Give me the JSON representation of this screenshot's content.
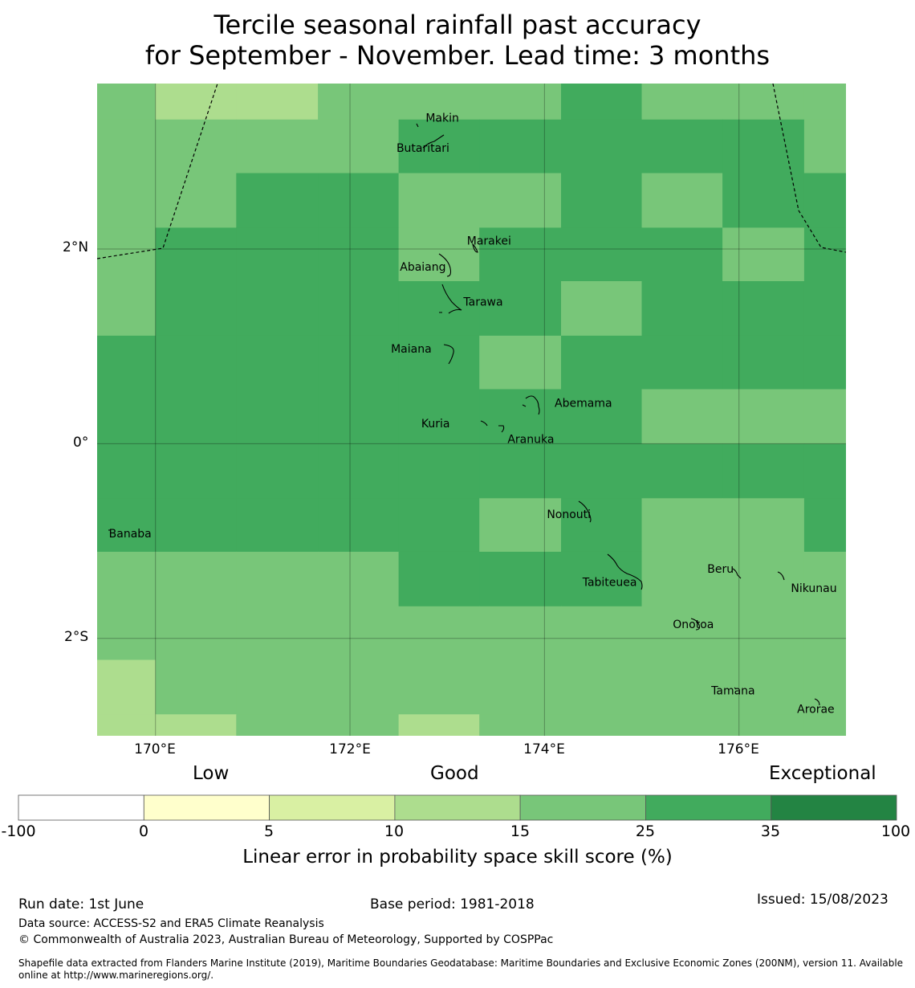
{
  "title_line1": "Tercile seasonal rainfall past accuracy",
  "title_line2": "for September - November. Lead time: 3 months",
  "map": {
    "lon_range": [
      169.4,
      177.1
    ],
    "lat_range": [
      -3.0,
      3.7
    ],
    "lat_ticks": [
      {
        "label": "2°N",
        "lat": 2
      },
      {
        "label": "0°",
        "lat": 0
      },
      {
        "label": "2°S",
        "lat": -2
      }
    ],
    "lon_ticks": [
      {
        "label": "170°E",
        "lon": 170
      },
      {
        "label": "172°E",
        "lon": 172
      },
      {
        "label": "174°E",
        "lon": 174
      },
      {
        "label": "176°E",
        "lon": 176
      }
    ],
    "cell_lon_edges": [
      169.4,
      170.0,
      170.83,
      171.67,
      172.5,
      173.33,
      174.17,
      175.0,
      175.83,
      176.67,
      177.1
    ],
    "cell_lat_edges": [
      3.7,
      3.33,
      2.78,
      2.22,
      1.67,
      1.11,
      0.56,
      0.0,
      -0.56,
      -1.11,
      -1.67,
      -2.22,
      -2.78,
      -3.0
    ],
    "skill_categories": [
      [
        3,
        2,
        2,
        3,
        3,
        3,
        4,
        3,
        3,
        3
      ],
      [
        3,
        3,
        3,
        3,
        4,
        4,
        4,
        4,
        4,
        3
      ],
      [
        3,
        3,
        4,
        4,
        3,
        3,
        4,
        3,
        4,
        4
      ],
      [
        3,
        4,
        4,
        4,
        3,
        4,
        4,
        4,
        3,
        4
      ],
      [
        3,
        4,
        4,
        4,
        4,
        4,
        3,
        4,
        4,
        4
      ],
      [
        4,
        4,
        4,
        4,
        4,
        3,
        4,
        4,
        4,
        4
      ],
      [
        4,
        4,
        4,
        4,
        4,
        4,
        4,
        3,
        3,
        3
      ],
      [
        4,
        4,
        4,
        4,
        4,
        4,
        4,
        4,
        4,
        4
      ],
      [
        4,
        4,
        4,
        4,
        4,
        3,
        4,
        3,
        3,
        4
      ],
      [
        3,
        3,
        3,
        3,
        4,
        4,
        4,
        3,
        3,
        3
      ],
      [
        3,
        3,
        3,
        3,
        3,
        3,
        3,
        3,
        3,
        3
      ],
      [
        2,
        3,
        3,
        3,
        3,
        3,
        3,
        3,
        3,
        3
      ],
      [
        2,
        2,
        3,
        3,
        2,
        3,
        3,
        3,
        3,
        3
      ]
    ],
    "islands": [
      {
        "name": "Makin",
        "lon": 172.95,
        "lat": 3.34
      },
      {
        "name": "Butaritari",
        "lon": 172.75,
        "lat": 3.03
      },
      {
        "name": "Marakei",
        "lon": 173.43,
        "lat": 2.08
      },
      {
        "name": "Abaiang",
        "lon": 172.75,
        "lat": 1.81
      },
      {
        "name": "Tarawa",
        "lon": 173.37,
        "lat": 1.45
      },
      {
        "name": "Maiana",
        "lon": 172.63,
        "lat": 0.97
      },
      {
        "name": "Abemama",
        "lon": 174.4,
        "lat": 0.41
      },
      {
        "name": "Kuria",
        "lon": 172.88,
        "lat": 0.2
      },
      {
        "name": "Aranuka",
        "lon": 173.86,
        "lat": 0.04
      },
      {
        "name": "Nonouti",
        "lon": 174.25,
        "lat": -0.73
      },
      {
        "name": "Banaba",
        "lon": 169.74,
        "lat": -0.93
      },
      {
        "name": "Beru",
        "lon": 175.81,
        "lat": -1.29
      },
      {
        "name": "Tabiteuea",
        "lon": 174.67,
        "lat": -1.43
      },
      {
        "name": "Nikunau",
        "lon": 176.77,
        "lat": -1.49
      },
      {
        "name": "Onotoa",
        "lon": 175.53,
        "lat": -1.86
      },
      {
        "name": "Tamana",
        "lon": 175.94,
        "lat": -2.54
      },
      {
        "name": "Arorae",
        "lon": 176.79,
        "lat": -2.73
      }
    ]
  },
  "colorbar": {
    "categories": [
      "Low",
      "Good",
      "Exceptional"
    ],
    "ticks": [
      "-100",
      "0",
      "5",
      "10",
      "15",
      "25",
      "35",
      "100"
    ],
    "colors": [
      "#ffffff",
      "#ffffcc",
      "#d9f0a3",
      "#addd8e",
      "#78c679",
      "#41ab5d",
      "#238443"
    ],
    "label": "Linear error in probability space skill score (%)"
  },
  "footer": {
    "run_date": "Run date: 1st June",
    "base_period": "Base period: 1981-2018",
    "issued": "Issued: 15/08/2023",
    "data_source": "Data source: ACCESS-S2 and ERA5 Climate Reanalysis",
    "copyright": "© Commonwealth of Australia 2023, Australian Bureau of Meteorology, Supported by COSPPac",
    "shapefile_line1": "Shapefile data extracted from Flanders Marine Institute (2019), Maritime Boundaries Geodatabase: Maritime Boundaries and Exclusive Economic Zones (200NM), version 11. Available",
    "shapefile_line2": "online at http://www.marineregions.org/."
  }
}
